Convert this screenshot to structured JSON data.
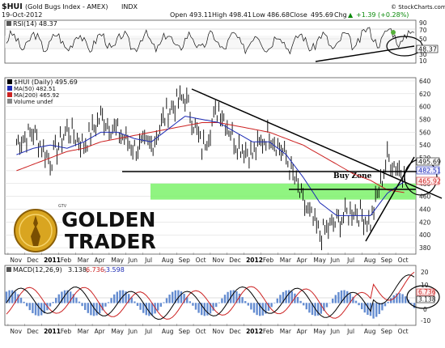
{
  "header": {
    "symbol": "$HUI",
    "name": "(Gold Bugs Index - AMEX)",
    "exchange": "INDX",
    "date": "19-Oct-2012",
    "open_label": "Open",
    "open": "493.11",
    "high_label": "High",
    "high": "498.41",
    "low_label": "Low",
    "low": "486.68",
    "close_label": "Close",
    "close": "495.69",
    "chg_label": "Chg",
    "chg": "+1.39 (+0.28%)",
    "credit": "© StockCharts.com",
    "arrow": "▲"
  },
  "rsi_panel": {
    "label": "RSI(14) 48.37",
    "value_box": "48.37",
    "ticks": [
      "90",
      "70",
      "50",
      "30",
      "10"
    ]
  },
  "price_panel": {
    "legend": [
      "$HUI (Daily) 495.69",
      "MA(50) 482.51",
      "MA(200) 465.92",
      "Volume undef"
    ],
    "value_boxes": [
      "495.69",
      "482.51",
      "465.92"
    ],
    "y_ticks": [
      "640",
      "620",
      "600",
      "580",
      "560",
      "540",
      "520",
      "500",
      "480",
      "460",
      "440",
      "420",
      "400",
      "380"
    ],
    "annotation_buy_zone": "Buy Zone",
    "logo_line1": "GOLDEN",
    "logo_line2": "TRADER",
    "logo_small": "GTV"
  },
  "macd_panel": {
    "label": "MACD(12,26,9)",
    "v1": "3.138,",
    "v2": "6.736,",
    "v3": "-3.598",
    "ticks": [
      "20",
      "10",
      "0",
      "-10"
    ],
    "value_boxes": [
      "6.736",
      "3.138"
    ]
  },
  "x_axis": {
    "labels": [
      "Nov",
      "Dec",
      "2011",
      "Feb",
      "Mar",
      "Apr",
      "May",
      "Jun",
      "Jul",
      "Aug",
      "Sep",
      "Oct",
      "Nov",
      "Dec",
      "2012",
      "Feb",
      "Mar",
      "Apr",
      "May",
      "Jun",
      "Jul",
      "Aug",
      "Sep",
      "Oct"
    ]
  },
  "chart_data": {
    "type": "line",
    "title": "$HUI (Gold Bugs Index - AMEX) INDX",
    "x": [
      "2010-11",
      "2010-12",
      "2011-01",
      "2011-02",
      "2011-03",
      "2011-04",
      "2011-05",
      "2011-06",
      "2011-07",
      "2011-08",
      "2011-09",
      "2011-10",
      "2011-11",
      "2011-12",
      "2012-01",
      "2012-02",
      "2012-03",
      "2012-04",
      "2012-05",
      "2012-06",
      "2012-07",
      "2012-08",
      "2012-09",
      "2012-10"
    ],
    "ylim": [
      370,
      645
    ],
    "series": [
      {
        "name": "$HUI (Daily) 495.69",
        "color": "#000000",
        "values": [
          545,
          560,
          515,
          565,
          540,
          585,
          560,
          535,
          540,
          595,
          615,
          535,
          600,
          545,
          525,
          560,
          520,
          450,
          400,
          420,
          440,
          420,
          520,
          496
        ]
      },
      {
        "name": "MA(50) 482.51",
        "color": "#1d2bb4",
        "values": [
          525,
          535,
          540,
          535,
          545,
          560,
          560,
          550,
          545,
          565,
          585,
          580,
          575,
          560,
          545,
          545,
          525,
          490,
          450,
          430,
          430,
          430,
          465,
          483
        ]
      },
      {
        "name": "MA(200) 465.92",
        "color": "#cc2222",
        "values": [
          500,
          510,
          520,
          530,
          535,
          545,
          550,
          555,
          560,
          565,
          570,
          575,
          575,
          570,
          565,
          560,
          550,
          540,
          525,
          510,
          495,
          485,
          470,
          466
        ]
      }
    ],
    "buy_zone": [
      455,
      480
    ],
    "rsi": {
      "name": "RSI(14) 48.37",
      "ylim": [
        10,
        90
      ],
      "last": 48.37
    },
    "macd": {
      "name": "MACD(12,26,9)",
      "macd": 3.138,
      "signal": 6.736,
      "histogram": -3.598,
      "ylim": [
        -15,
        25
      ]
    },
    "colors": {
      "buy_zone": "#7df26b",
      "price": "#000000",
      "ma50": "#1d2bb4",
      "ma200": "#cc2222"
    }
  }
}
